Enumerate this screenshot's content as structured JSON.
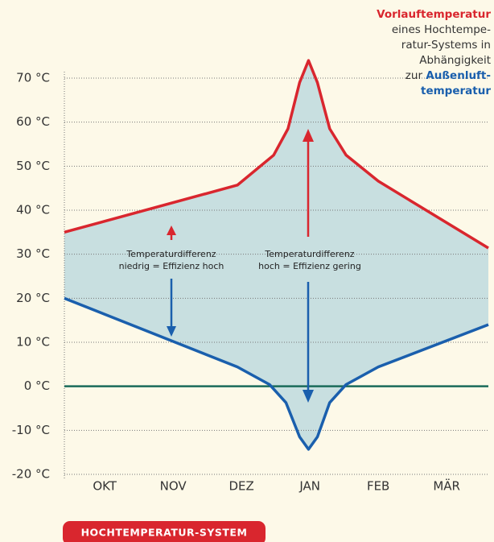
{
  "chart_data": {
    "type": "line",
    "title": "Vorlauftemperatur",
    "subtitle_lines": [
      "eines Hochtempe-",
      "ratur-Systems in",
      "Abhängigkeit",
      "zur "
    ],
    "subtitle_highlight": [
      "Außenluft-",
      "temperatur"
    ],
    "annotations": [
      [
        "Temperaturdifferenz",
        "niedrig = Effizienz hoch"
      ],
      [
        "Temperaturdifferenz",
        "hoch = Effizienz gering"
      ]
    ],
    "badge": "HOCHTEMPERATUR-SYSTEM",
    "xlim": [
      -0.59,
      5.61
    ],
    "xticks": [
      {
        "value": 0,
        "label": "OKT"
      },
      {
        "value": 1,
        "label": "NOV"
      },
      {
        "value": 2,
        "label": "DEZ"
      },
      {
        "value": 3,
        "label": "JAN"
      },
      {
        "value": 4,
        "label": "FEB"
      },
      {
        "value": 5,
        "label": "MÄR"
      }
    ],
    "ylim": [
      -20,
      70
    ],
    "yticks": [
      {
        "value": -20,
        "label": "-20 °C"
      },
      {
        "value": -10,
        "label": "-10 °C"
      },
      {
        "value": 0,
        "label": "0 °C"
      },
      {
        "value": 10,
        "label": "10 °C"
      },
      {
        "value": 20,
        "label": "20 °C"
      },
      {
        "value": 30,
        "label": "30 °C"
      },
      {
        "value": 40,
        "label": "40 °C"
      },
      {
        "value": 50,
        "label": "50 °C"
      },
      {
        "value": 60,
        "label": "60 °C"
      },
      {
        "value": 70,
        "label": "70 °C"
      }
    ],
    "grid": true,
    "zero_line_color": "#1a6b5a",
    "fill_color": "#c8dfe0",
    "series": [
      {
        "name": "Vorlauftemperatur",
        "color": "#d9262e",
        "x": [
          -0.59,
          1.94,
          2.47,
          2.68,
          2.85,
          2.98,
          3.11,
          3.29,
          3.53,
          4.0,
          5.61
        ],
        "values": [
          35,
          45.7,
          52.5,
          58.5,
          69,
          74,
          69,
          58.5,
          52.5,
          46.6,
          31.4
        ]
      },
      {
        "name": "Außenlufttemperatur",
        "color": "#1a5fad",
        "x": [
          -0.59,
          1.94,
          2.41,
          2.65,
          2.85,
          2.98,
          3.11,
          3.29,
          3.53,
          4.0,
          5.61
        ],
        "values": [
          20,
          4.4,
          0.4,
          -3.7,
          -11.5,
          -14.3,
          -11.5,
          -3.7,
          0.4,
          4.4,
          14
        ]
      }
    ]
  }
}
